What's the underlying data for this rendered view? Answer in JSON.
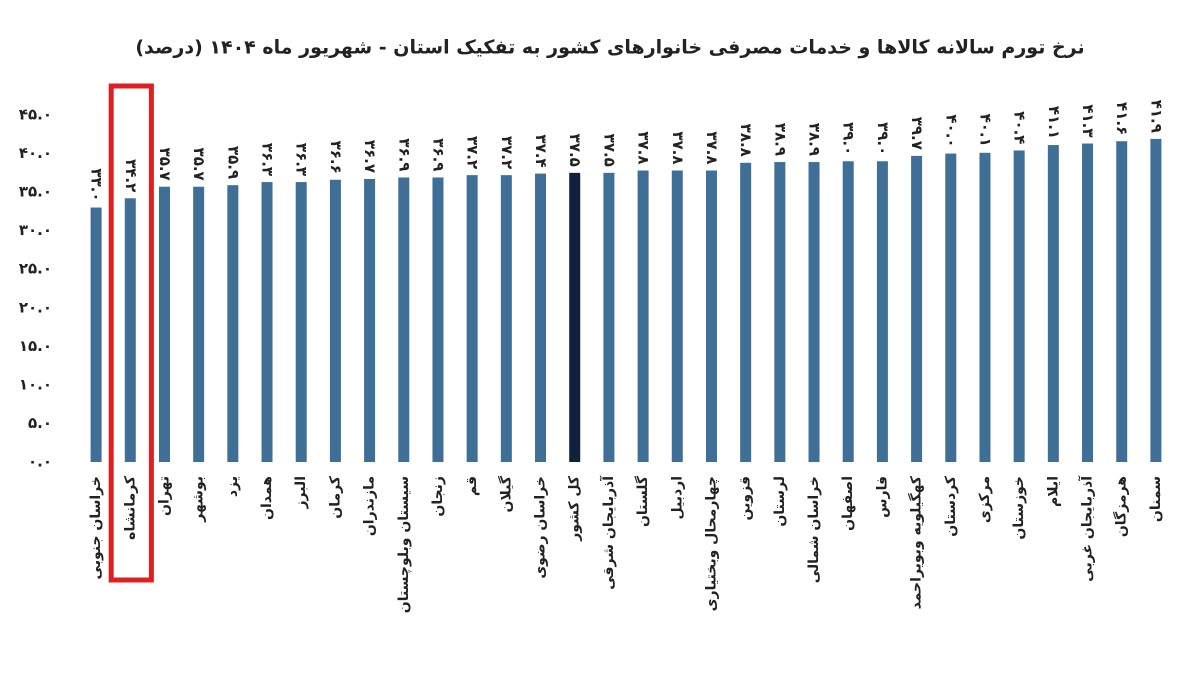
{
  "chart_data": {
    "type": "bar",
    "title": "نرخ تورم سالانه کالاها و خدمات مصرفی خانوارهای کشور به تفکیک استان - شهریور ماه ۱۴۰۴ (درصد)",
    "categories": [
      "خراسان جنوبی",
      "کرمانشاه",
      "تهران",
      "بوشهر",
      "یزد",
      "همدان",
      "البرز",
      "کرمان",
      "مازندران",
      "سیستان وبلوچستان",
      "زنجان",
      "قم",
      "گیلان",
      "خراسان رضوی",
      "کل کشور",
      "آذربایجان شرقی",
      "گلستان",
      "اردبیل",
      "چهارمحال وبختیاری",
      "قزوین",
      "لرستان",
      "خراسان شمالی",
      "اصفهان",
      "فارس",
      "کهگیلویه وبویراحمد",
      "کردستان",
      "مرکزی",
      "خوزستان",
      "ایلام",
      "آذربایجان غربی",
      "هرمزگان",
      "سمنان"
    ],
    "values": [
      33.0,
      34.2,
      35.7,
      35.7,
      35.9,
      36.3,
      36.3,
      36.6,
      36.7,
      36.9,
      36.9,
      37.2,
      37.2,
      37.4,
      37.5,
      37.5,
      37.8,
      37.8,
      37.8,
      38.8,
      38.9,
      38.9,
      39.0,
      39.0,
      39.7,
      40.0,
      40.1,
      40.4,
      41.1,
      41.3,
      41.6,
      41.9
    ],
    "value_labels": [
      "۳۳.۰",
      "۳۴.۲",
      "۳۵.۷",
      "۳۵.۷",
      "۳۵.۹",
      "۳۶.۳",
      "۳۶.۳",
      "۳۶.۶",
      "۳۶.۷",
      "۳۶.۹",
      "۳۶.۹",
      "۳۷.۲",
      "۳۷.۲",
      "۳۷.۴",
      "۳۷.۵",
      "۳۷.۵",
      "۳۷.۸",
      "۳۷.۸",
      "۳۷.۸",
      "۳۸.۸",
      "۳۸.۹",
      "۳۸.۹",
      "۳۹.۰",
      "۳۹.۰",
      "۳۹.۷",
      "۴۰.۰",
      "۴۰.۱",
      "۴۰.۴",
      "۴۱.۱",
      "۴۱.۳",
      "۴۱.۶",
      "۴۱.۹"
    ],
    "colors": [
      "#3f6f96",
      "#3f6f96",
      "#3f6f96",
      "#3f6f96",
      "#3f6f96",
      "#3f6f96",
      "#3f6f96",
      "#3f6f96",
      "#3f6f96",
      "#3f6f96",
      "#3f6f96",
      "#3f6f96",
      "#3f6f96",
      "#3f6f96",
      "#10223b",
      "#3f6f96",
      "#3f6f96",
      "#3f6f96",
      "#3f6f96",
      "#3f6f96",
      "#3f6f96",
      "#3f6f96",
      "#3f6f96",
      "#3f6f96",
      "#3f6f96",
      "#3f6f96",
      "#3f6f96",
      "#3f6f96",
      "#3f6f96",
      "#3f6f96",
      "#3f6f96",
      "#3f6f96"
    ],
    "ylim": [
      0,
      45
    ],
    "yticks": [
      {
        "value": 0,
        "label": "۰.۰"
      },
      {
        "value": 5,
        "label": "۵.۰"
      },
      {
        "value": 10,
        "label": "۱۰.۰"
      },
      {
        "value": 15,
        "label": "۱۵.۰"
      },
      {
        "value": 20,
        "label": "۲۰.۰"
      },
      {
        "value": 25,
        "label": "۲۵.۰"
      },
      {
        "value": 30,
        "label": "۳۰.۰"
      },
      {
        "value": 35,
        "label": "۳۵.۰"
      },
      {
        "value": 40,
        "label": "۴۰.۰"
      },
      {
        "value": 45,
        "label": "۴۵.۰"
      }
    ],
    "grid": false
  }
}
